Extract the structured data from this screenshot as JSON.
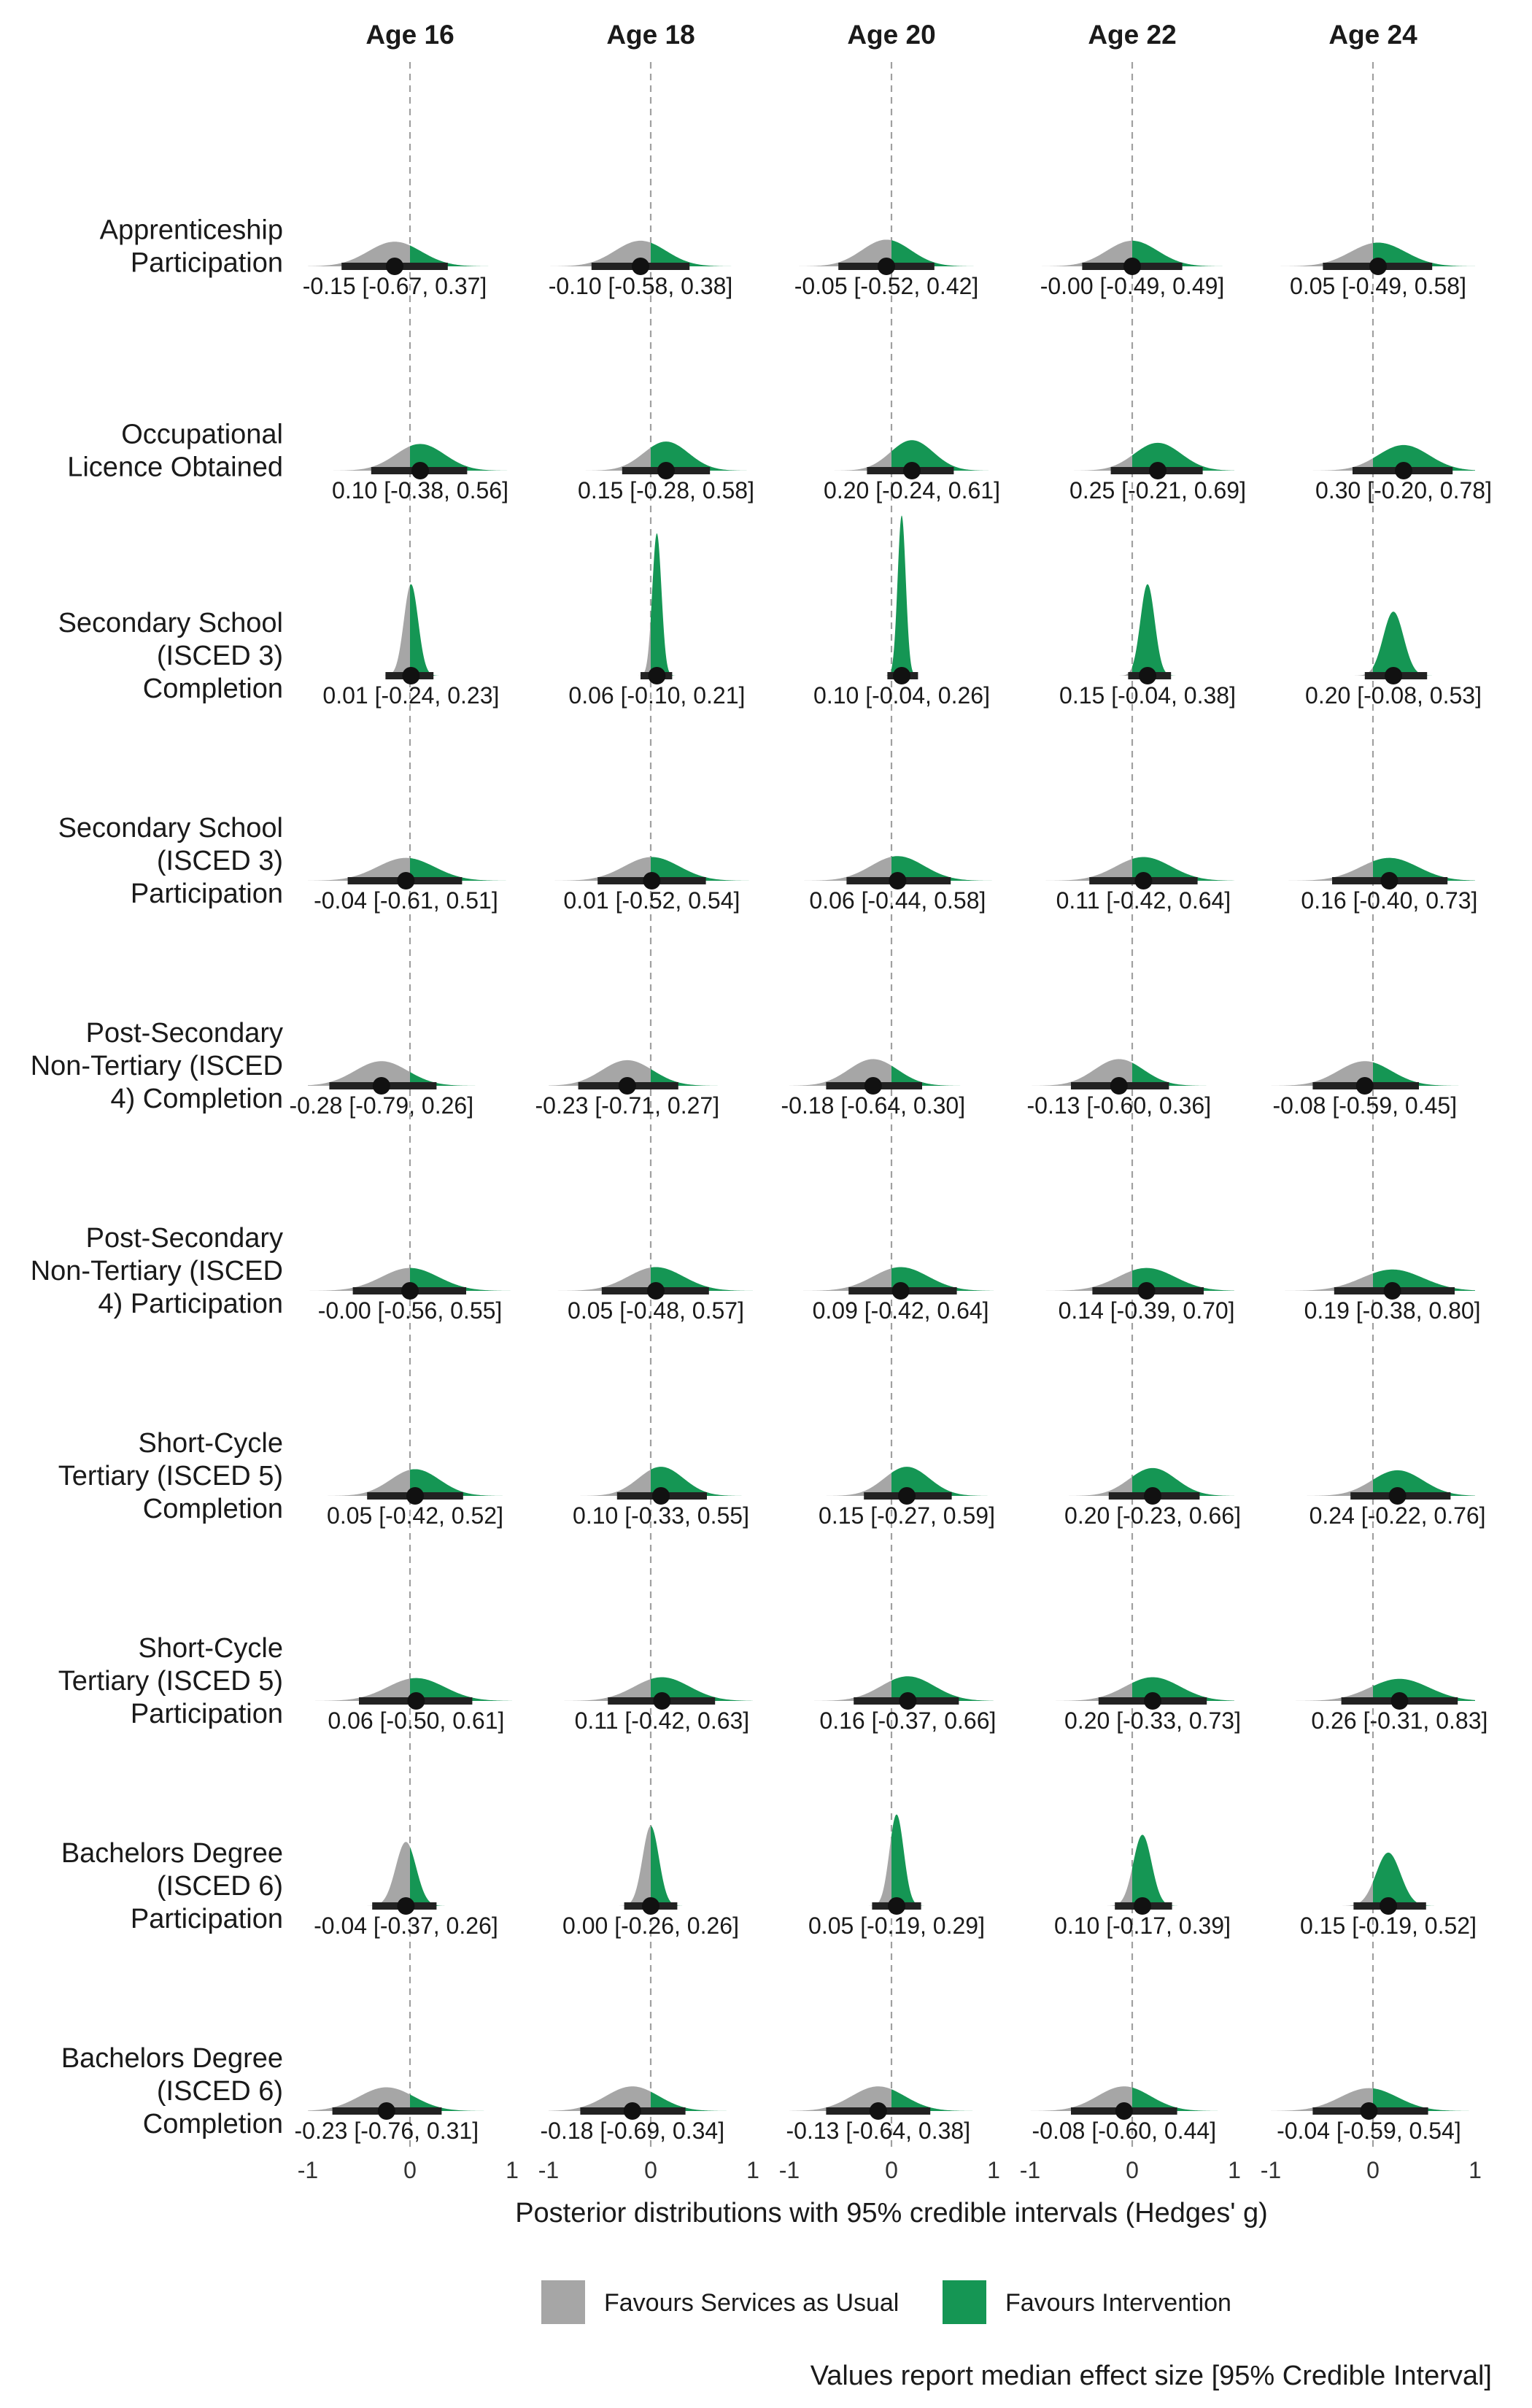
{
  "chart_data": {
    "type": "density-interval",
    "columns": [
      "Age 16",
      "Age 18",
      "Age 20",
      "Age 22",
      "Age 24"
    ],
    "rows": [
      {
        "label": [
          "Apprenticeship",
          "Participation"
        ],
        "cells": [
          {
            "median": -0.15,
            "lo": -0.67,
            "hi": 0.37,
            "sd": 0.26,
            "text": "-0.15 [-0.67, 0.37]"
          },
          {
            "median": -0.1,
            "lo": -0.58,
            "hi": 0.38,
            "sd": 0.25,
            "text": "-0.10 [-0.58, 0.38]"
          },
          {
            "median": -0.05,
            "lo": -0.52,
            "hi": 0.42,
            "sd": 0.24,
            "text": "-0.05 [-0.52, 0.42]"
          },
          {
            "median": -0.0,
            "lo": -0.49,
            "hi": 0.49,
            "sd": 0.25,
            "text": "-0.00 [-0.49, 0.49]"
          },
          {
            "median": 0.05,
            "lo": -0.49,
            "hi": 0.58,
            "sd": 0.27,
            "text": "0.05 [-0.49, 0.58]"
          }
        ]
      },
      {
        "label": [
          "Occupational",
          "Licence Obtained"
        ],
        "cells": [
          {
            "median": 0.1,
            "lo": -0.38,
            "hi": 0.56,
            "sd": 0.24,
            "text": "0.10 [-0.38, 0.56]"
          },
          {
            "median": 0.15,
            "lo": -0.28,
            "hi": 0.58,
            "sd": 0.22,
            "text": "0.15 [-0.28, 0.58]"
          },
          {
            "median": 0.2,
            "lo": -0.24,
            "hi": 0.61,
            "sd": 0.21,
            "text": "0.20 [-0.24, 0.61]"
          },
          {
            "median": 0.25,
            "lo": -0.21,
            "hi": 0.69,
            "sd": 0.23,
            "text": "0.25 [-0.21, 0.69]"
          },
          {
            "median": 0.3,
            "lo": -0.2,
            "hi": 0.78,
            "sd": 0.25,
            "text": "0.30 [-0.20, 0.78]"
          }
        ]
      },
      {
        "label": [
          "Secondary School",
          "(ISCED 3)",
          "Completion"
        ],
        "cells": [
          {
            "median": 0.01,
            "lo": -0.24,
            "hi": 0.23,
            "sd": 0.07,
            "text": "0.01 [-0.24, 0.23]"
          },
          {
            "median": 0.06,
            "lo": -0.1,
            "hi": 0.21,
            "sd": 0.045,
            "text": "0.06 [-0.10, 0.21]"
          },
          {
            "median": 0.1,
            "lo": -0.04,
            "hi": 0.26,
            "sd": 0.04,
            "text": "0.10 [-0.04, 0.26]"
          },
          {
            "median": 0.15,
            "lo": -0.04,
            "hi": 0.38,
            "sd": 0.07,
            "text": "0.15 [-0.04, 0.38]"
          },
          {
            "median": 0.2,
            "lo": -0.08,
            "hi": 0.53,
            "sd": 0.1,
            "text": "0.20 [-0.08, 0.53]"
          }
        ]
      },
      {
        "label": [
          "Secondary School",
          "(ISCED 3)",
          "Participation"
        ],
        "cells": [
          {
            "median": -0.04,
            "lo": -0.61,
            "hi": 0.51,
            "sd": 0.28,
            "text": "-0.04 [-0.61, 0.51]"
          },
          {
            "median": 0.01,
            "lo": -0.52,
            "hi": 0.54,
            "sd": 0.27,
            "text": "0.01 [-0.52, 0.54]"
          },
          {
            "median": 0.06,
            "lo": -0.44,
            "hi": 0.58,
            "sd": 0.26,
            "text": "0.06 [-0.44, 0.58]"
          },
          {
            "median": 0.11,
            "lo": -0.42,
            "hi": 0.64,
            "sd": 0.27,
            "text": "0.11 [-0.42, 0.64]"
          },
          {
            "median": 0.16,
            "lo": -0.4,
            "hi": 0.73,
            "sd": 0.28,
            "text": "0.16 [-0.40, 0.73]"
          }
        ]
      },
      {
        "label": [
          "Post-Secondary",
          "Non-Tertiary (ISCED",
          "4) Completion"
        ],
        "cells": [
          {
            "median": -0.28,
            "lo": -0.79,
            "hi": 0.26,
            "sd": 0.26,
            "text": "-0.28 [-0.79, 0.26]"
          },
          {
            "median": -0.23,
            "lo": -0.71,
            "hi": 0.27,
            "sd": 0.25,
            "text": "-0.23 [-0.71, 0.27]"
          },
          {
            "median": -0.18,
            "lo": -0.64,
            "hi": 0.3,
            "sd": 0.24,
            "text": "-0.18 [-0.64, 0.30]"
          },
          {
            "median": -0.13,
            "lo": -0.6,
            "hi": 0.36,
            "sd": 0.24,
            "text": "-0.13 [-0.60, 0.36]"
          },
          {
            "median": -0.08,
            "lo": -0.59,
            "hi": 0.45,
            "sd": 0.26,
            "text": "-0.08 [-0.59, 0.45]"
          }
        ]
      },
      {
        "label": [
          "Post-Secondary",
          "Non-Tertiary (ISCED",
          "4) Participation"
        ],
        "cells": [
          {
            "median": -0.0,
            "lo": -0.56,
            "hi": 0.55,
            "sd": 0.28,
            "text": "-0.00 [-0.56, 0.55]"
          },
          {
            "median": 0.05,
            "lo": -0.48,
            "hi": 0.57,
            "sd": 0.27,
            "text": "0.05 [-0.48, 0.57]"
          },
          {
            "median": 0.09,
            "lo": -0.42,
            "hi": 0.64,
            "sd": 0.27,
            "text": "0.09 [-0.42, 0.64]"
          },
          {
            "median": 0.14,
            "lo": -0.39,
            "hi": 0.7,
            "sd": 0.28,
            "text": "0.14 [-0.39, 0.70]"
          },
          {
            "median": 0.19,
            "lo": -0.38,
            "hi": 0.8,
            "sd": 0.3,
            "text": "0.19 [-0.38, 0.80]"
          }
        ]
      },
      {
        "label": [
          "Short-Cycle",
          "Tertiary (ISCED 5)",
          "Completion"
        ],
        "cells": [
          {
            "median": 0.05,
            "lo": -0.42,
            "hi": 0.52,
            "sd": 0.24,
            "text": "0.05 [-0.42, 0.52]"
          },
          {
            "median": 0.1,
            "lo": -0.33,
            "hi": 0.55,
            "sd": 0.22,
            "text": "0.10 [-0.33, 0.55]"
          },
          {
            "median": 0.15,
            "lo": -0.27,
            "hi": 0.59,
            "sd": 0.22,
            "text": "0.15 [-0.27, 0.59]"
          },
          {
            "median": 0.2,
            "lo": -0.23,
            "hi": 0.66,
            "sd": 0.23,
            "text": "0.20 [-0.23, 0.66]"
          },
          {
            "median": 0.24,
            "lo": -0.22,
            "hi": 0.76,
            "sd": 0.25,
            "text": "0.24 [-0.22, 0.76]"
          }
        ]
      },
      {
        "label": [
          "Short-Cycle",
          "Tertiary (ISCED 5)",
          "Participation"
        ],
        "cells": [
          {
            "median": 0.06,
            "lo": -0.5,
            "hi": 0.61,
            "sd": 0.28,
            "text": "0.06 [-0.50, 0.61]"
          },
          {
            "median": 0.11,
            "lo": -0.42,
            "hi": 0.63,
            "sd": 0.27,
            "text": "0.11 [-0.42, 0.63]"
          },
          {
            "median": 0.16,
            "lo": -0.37,
            "hi": 0.66,
            "sd": 0.26,
            "text": "0.16 [-0.37, 0.66]"
          },
          {
            "median": 0.2,
            "lo": -0.33,
            "hi": 0.73,
            "sd": 0.27,
            "text": "0.20 [-0.33, 0.73]"
          },
          {
            "median": 0.26,
            "lo": -0.31,
            "hi": 0.83,
            "sd": 0.29,
            "text": "0.26 [-0.31, 0.83]"
          }
        ]
      },
      {
        "label": [
          "Bachelors Degree",
          "(ISCED 6)",
          "Participation"
        ],
        "cells": [
          {
            "median": -0.04,
            "lo": -0.37,
            "hi": 0.26,
            "sd": 0.1,
            "text": "-0.04 [-0.37, 0.26]"
          },
          {
            "median": 0.0,
            "lo": -0.26,
            "hi": 0.26,
            "sd": 0.08,
            "text": "0.00 [-0.26, 0.26]"
          },
          {
            "median": 0.05,
            "lo": -0.19,
            "hi": 0.29,
            "sd": 0.07,
            "text": "0.05 [-0.19, 0.29]"
          },
          {
            "median": 0.1,
            "lo": -0.17,
            "hi": 0.39,
            "sd": 0.09,
            "text": "0.10 [-0.17, 0.39]"
          },
          {
            "median": 0.15,
            "lo": -0.19,
            "hi": 0.52,
            "sd": 0.12,
            "text": "0.15 [-0.19, 0.52]"
          }
        ]
      },
      {
        "label": [
          "Bachelors Degree",
          "(ISCED 6)",
          "Completion"
        ],
        "cells": [
          {
            "median": -0.23,
            "lo": -0.76,
            "hi": 0.31,
            "sd": 0.27,
            "text": "-0.23 [-0.76, 0.31]"
          },
          {
            "median": -0.18,
            "lo": -0.69,
            "hi": 0.34,
            "sd": 0.26,
            "text": "-0.18 [-0.69, 0.34]"
          },
          {
            "median": -0.13,
            "lo": -0.64,
            "hi": 0.38,
            "sd": 0.26,
            "text": "-0.13 [-0.64, 0.38]"
          },
          {
            "median": -0.08,
            "lo": -0.6,
            "hi": 0.44,
            "sd": 0.26,
            "text": "-0.08 [-0.60, 0.44]"
          },
          {
            "median": -0.04,
            "lo": -0.59,
            "hi": 0.54,
            "sd": 0.28,
            "text": "-0.04 [-0.59, 0.54]"
          }
        ]
      }
    ],
    "xlim": [
      -1,
      1
    ],
    "x_ticks": [
      -1,
      0,
      1
    ],
    "reference_line": 0,
    "xlabel": "Posterior distributions with 95% credible intervals (Hedges' g)",
    "legend": [
      {
        "label": "Favours Services as Usual",
        "color": "#a6a6a6"
      },
      {
        "label": "Favours Intervention",
        "color": "#159654"
      }
    ],
    "legend_position": "bottom",
    "caption": "Values report median effect size [95% Credible Interval]"
  },
  "colors": {
    "negative": "#a6a6a6",
    "positive": "#159654",
    "interval": "#222222",
    "reference": "#a0a0a0"
  }
}
